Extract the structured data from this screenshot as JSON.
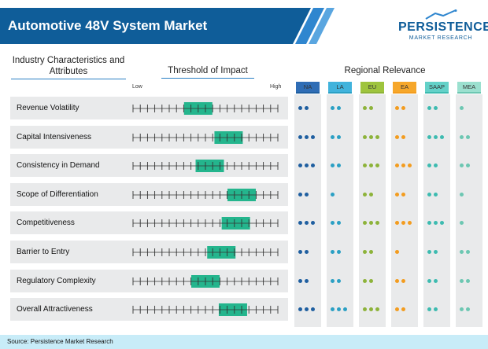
{
  "header": {
    "title": "Automotive 48V System Market"
  },
  "logo": {
    "main": "PERSISTENCE",
    "sub": "MARKET RESEARCH"
  },
  "columns": {
    "industry": "Industry Characteristics and Attributes",
    "threshold": "Threshold of Impact",
    "regional": "Regional Relevance",
    "low": "Low",
    "high": "High"
  },
  "regions": [
    {
      "label": "NA",
      "color": "#1f5fa0",
      "bg": "#2f6db5"
    },
    {
      "label": "LA",
      "color": "#2ba0c4",
      "bg": "#41b3dc"
    },
    {
      "label": "EU",
      "color": "#8db33a",
      "bg": "#9ec43d"
    },
    {
      "label": "EA",
      "color": "#f39c1f",
      "bg": "#f6a72a"
    },
    {
      "label": "SAAP",
      "color": "#3dbbb0",
      "bg": "#63d1c8"
    },
    {
      "label": "MEA",
      "color": "#6dc7b2",
      "bg": "#9be0cf"
    }
  ],
  "rows": [
    {
      "label": "Revenue Volatility",
      "impact": 0.45,
      "dots": [
        2,
        2,
        2,
        2,
        2,
        1
      ]
    },
    {
      "label": "Capital Intensiveness",
      "impact": 0.66,
      "dots": [
        3,
        2,
        3,
        2,
        3,
        2
      ]
    },
    {
      "label": "Consistency in Demand",
      "impact": 0.53,
      "dots": [
        3,
        2,
        3,
        3,
        2,
        2
      ]
    },
    {
      "label": "Scope of Differentiation",
      "impact": 0.75,
      "dots": [
        2,
        1,
        2,
        2,
        2,
        1
      ]
    },
    {
      "label": "Competitiveness",
      "impact": 0.71,
      "dots": [
        3,
        2,
        3,
        3,
        3,
        1
      ]
    },
    {
      "label": "Barrier to Entry",
      "impact": 0.61,
      "dots": [
        2,
        2,
        2,
        1,
        2,
        2
      ]
    },
    {
      "label": "Regulatory Complexity",
      "impact": 0.5,
      "dots": [
        2,
        2,
        2,
        2,
        2,
        2
      ]
    },
    {
      "label": "Overall Attractiveness",
      "impact": 0.69,
      "dots": [
        3,
        3,
        3,
        2,
        2,
        2
      ]
    }
  ],
  "colors": {
    "header_dark": "#0f5d99",
    "header_light": "#2f86cf",
    "impact_bar": "#24b58d",
    "tick": "#333333"
  },
  "footer": {
    "source": "Source: Persistence Market Research"
  }
}
